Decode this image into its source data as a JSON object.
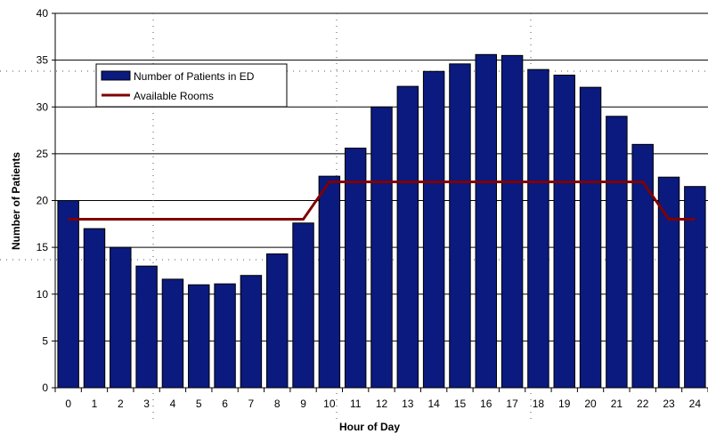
{
  "chart_data": {
    "type": "bar",
    "xlabel": "Hour of Day",
    "ylabel": "Number of Patients",
    "ylim": [
      0,
      40
    ],
    "yticks": [
      0,
      5,
      10,
      15,
      20,
      25,
      30,
      35,
      40
    ],
    "categories": [
      "0",
      "1",
      "2",
      "3",
      "4",
      "5",
      "6",
      "7",
      "8",
      "9",
      "10",
      "11",
      "12",
      "13",
      "14",
      "15",
      "16",
      "17",
      "18",
      "19",
      "20",
      "21",
      "22",
      "23",
      "24"
    ],
    "series": [
      {
        "name": "Number of Patients in ED",
        "kind": "bar",
        "color": "#0a1a7f",
        "values": [
          20,
          17,
          15,
          13,
          11.6,
          11,
          11.1,
          12,
          14.3,
          17.6,
          22.6,
          25.6,
          30,
          32.2,
          33.8,
          34.6,
          35.6,
          35.5,
          34,
          33.4,
          32.1,
          29,
          26,
          22.5,
          21.5
        ]
      },
      {
        "name": "Available Rooms",
        "kind": "line",
        "color": "#800000",
        "values": [
          18,
          18,
          18,
          18,
          18,
          18,
          18,
          18,
          18,
          18,
          22,
          22,
          22,
          22,
          22,
          22,
          22,
          22,
          22,
          22,
          22,
          22,
          22,
          18,
          18
        ]
      }
    ],
    "legend": {
      "position": "top-left"
    },
    "grid": {
      "y": true,
      "x": false
    }
  }
}
